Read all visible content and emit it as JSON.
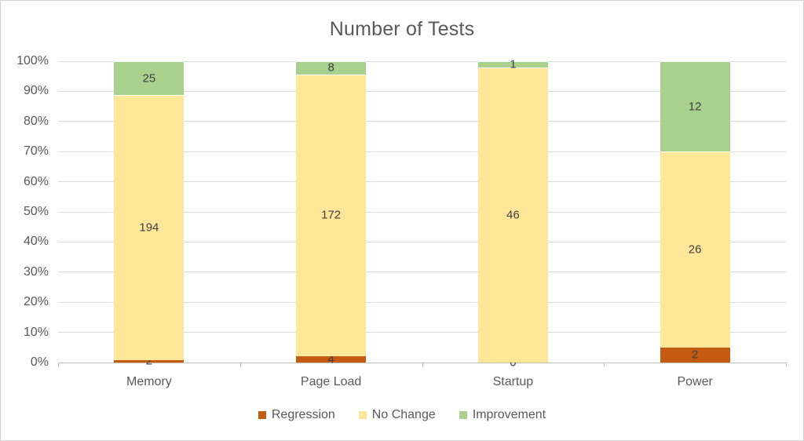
{
  "chart_data": {
    "type": "bar",
    "variant": "stacked-100-percent-column",
    "title": "Number of Tests",
    "categories": [
      "Memory",
      "Page Load",
      "Startup",
      "Power"
    ],
    "series": [
      {
        "name": "Regression",
        "color": "#C55A11",
        "values": [
          2,
          4,
          0,
          2
        ]
      },
      {
        "name": "No Change",
        "color": "#FFE699",
        "values": [
          194,
          172,
          46,
          26
        ]
      },
      {
        "name": "Improvement",
        "color": "#A9D18E",
        "values": [
          25,
          8,
          1,
          12
        ]
      }
    ],
    "y_axis": {
      "min": 0,
      "max": 100,
      "tick_labels": [
        "0%",
        "10%",
        "20%",
        "30%",
        "40%",
        "50%",
        "60%",
        "70%",
        "80%",
        "90%",
        "100%"
      ]
    },
    "grid": true,
    "legend_position": "bottom"
  },
  "colors": {
    "title_text": "#595959",
    "axis_text": "#595959",
    "data_label_text": "#404040",
    "gridline": "#dcdcdc",
    "axis_line": "#bfbfbf"
  }
}
